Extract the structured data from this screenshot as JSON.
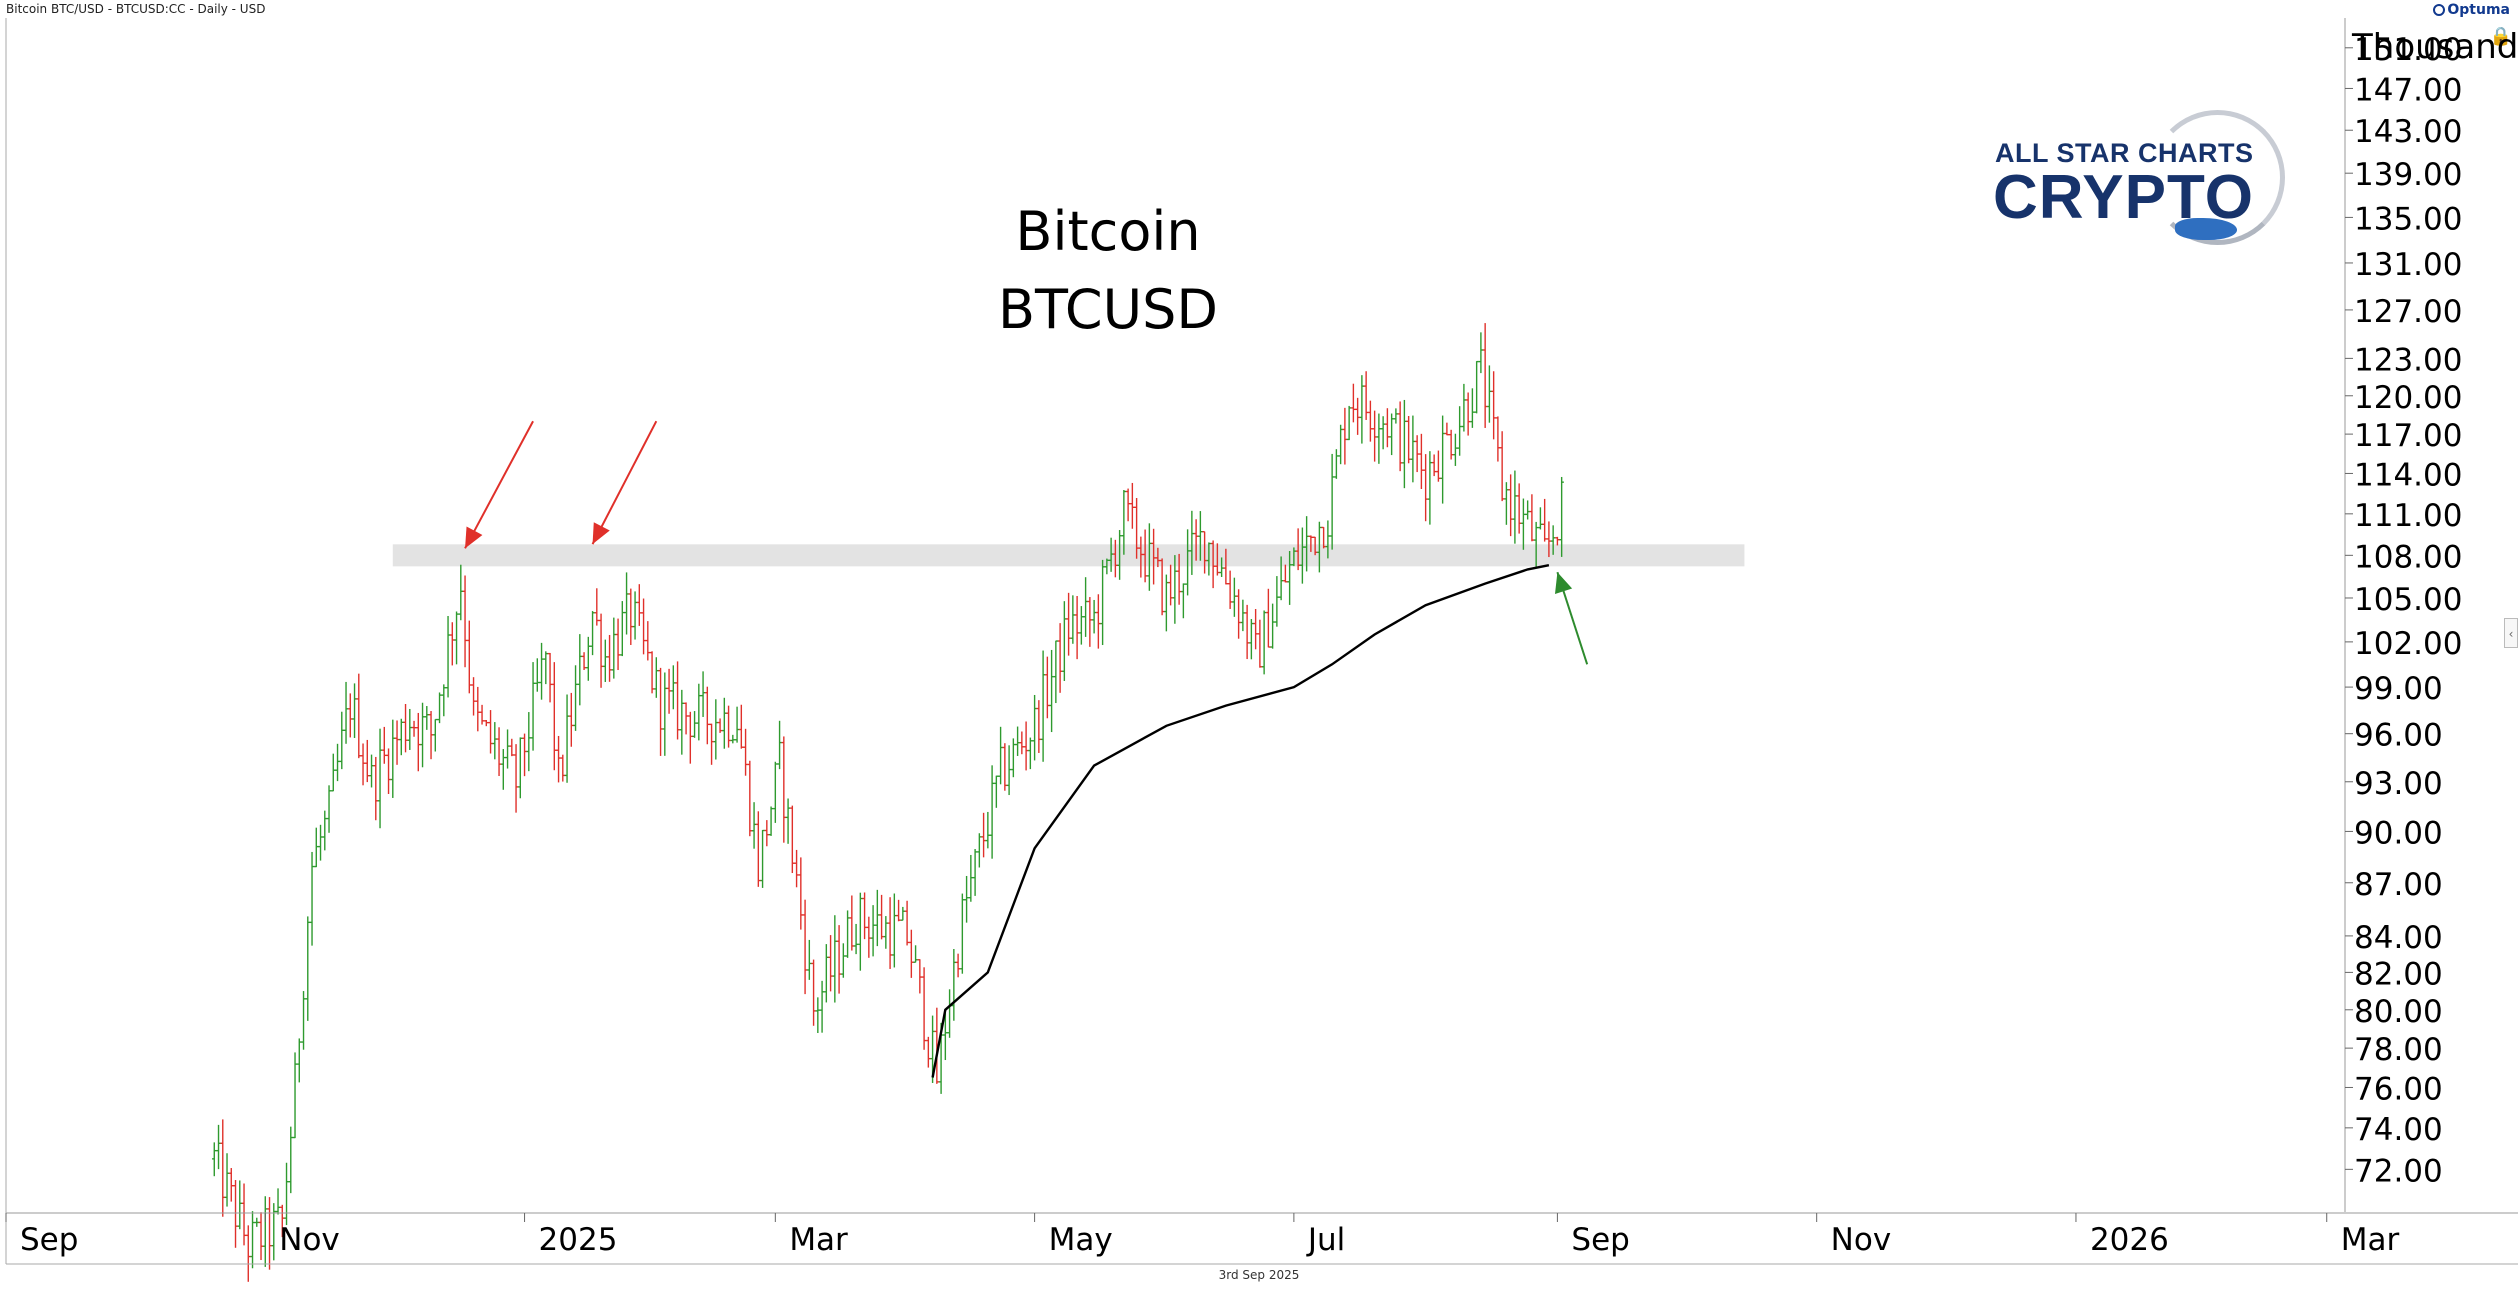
{
  "header": {
    "chart_description": "Bitcoin BTC/USD - BTCUSD:CC - Daily - USD",
    "brand": "Optuma"
  },
  "logo": {
    "line1": "ALL STAR CHARTS",
    "line2": "CRYPTO"
  },
  "footer": {
    "date": "3rd Sep 2025"
  },
  "chart_data": {
    "type": "candlestick",
    "title": "Bitcoin",
    "subtitle": "BTCUSD",
    "y_unit_label": "Thousand",
    "y_scale": "log",
    "ylim": [
      70,
      154
    ],
    "y_ticks": [
      "151.00",
      "147.00",
      "143.00",
      "139.00",
      "135.00",
      "131.00",
      "127.00",
      "123.00",
      "120.00",
      "117.00",
      "114.00",
      "111.00",
      "108.00",
      "105.00",
      "102.00",
      "99.00",
      "96.00",
      "93.00",
      "90.00",
      "87.00",
      "84.00",
      "82.00",
      "80.00",
      "78.00",
      "76.00",
      "74.00",
      "72.00"
    ],
    "x_ticks": [
      "Sep",
      "Nov",
      "2025",
      "Mar",
      "May",
      "Jul",
      "Sep",
      "Nov",
      "2026",
      "Mar"
    ],
    "xlim": [
      "2024-09-01",
      "2026-04-15"
    ],
    "colors": {
      "up": "#2e9a2e",
      "down": "#e0302a",
      "average_line": "#000000",
      "resistance_band": "#d9d9d9",
      "red_arrow": "#e0302a",
      "green_arrow": "#2e8b2e"
    },
    "price_path": [
      [
        "2024-10-20",
        72.5
      ],
      [
        "2024-10-28",
        68.5
      ],
      [
        "2024-11-05",
        69.5
      ],
      [
        "2024-11-08",
        76.0
      ],
      [
        "2024-11-12",
        88.0
      ],
      [
        "2024-11-16",
        91.0
      ],
      [
        "2024-11-21",
        98.0
      ],
      [
        "2024-11-26",
        93.0
      ],
      [
        "2024-12-05",
        97.0
      ],
      [
        "2024-12-10",
        96.0
      ],
      [
        "2024-12-17",
        106.0
      ],
      [
        "2024-12-20",
        97.0
      ],
      [
        "2024-12-25",
        95.0
      ],
      [
        "2024-12-30",
        93.0
      ],
      [
        "2025-01-06",
        101.0
      ],
      [
        "2025-01-09",
        93.0
      ],
      [
        "2025-01-17",
        104.0
      ],
      [
        "2025-01-20",
        101.0
      ],
      [
        "2025-01-26",
        104.0
      ],
      [
        "2025-02-02",
        98.0
      ],
      [
        "2025-02-10",
        97.0
      ],
      [
        "2025-02-20",
        97.0
      ],
      [
        "2025-02-25",
        88.0
      ],
      [
        "2025-03-02",
        94.0
      ],
      [
        "2025-03-10",
        80.0
      ],
      [
        "2025-03-20",
        85.0
      ],
      [
        "2025-04-01",
        84.0
      ],
      [
        "2025-04-08",
        76.5
      ],
      [
        "2025-04-14",
        85.0
      ],
      [
        "2025-04-23",
        93.5
      ],
      [
        "2025-05-01",
        96.5
      ],
      [
        "2025-05-09",
        103.0
      ],
      [
        "2025-05-15",
        103.5
      ],
      [
        "2025-05-22",
        111.0
      ],
      [
        "2025-06-01",
        105.0
      ],
      [
        "2025-06-10",
        109.5
      ],
      [
        "2025-06-18",
        104.5
      ],
      [
        "2025-06-22",
        101.0
      ],
      [
        "2025-06-30",
        107.0
      ],
      [
        "2025-07-09",
        111.0
      ],
      [
        "2025-07-14",
        120.0
      ],
      [
        "2025-07-23",
        118.0
      ],
      [
        "2025-08-01",
        114.0
      ],
      [
        "2025-08-08",
        117.5
      ],
      [
        "2025-08-14",
        122.0
      ],
      [
        "2025-08-19",
        113.0
      ],
      [
        "2025-08-25",
        110.0
      ],
      [
        "2025-08-29",
        108.0
      ],
      [
        "2025-09-02",
        111.5
      ]
    ],
    "average_line": [
      [
        "2025-04-07",
        76.5
      ],
      [
        "2025-04-10",
        80.0
      ],
      [
        "2025-04-20",
        82.0
      ],
      [
        "2025-05-01",
        89.0
      ],
      [
        "2025-05-15",
        94.0
      ],
      [
        "2025-06-01",
        96.5
      ],
      [
        "2025-06-15",
        97.8
      ],
      [
        "2025-07-01",
        99.0
      ],
      [
        "2025-07-10",
        100.5
      ],
      [
        "2025-07-20",
        102.5
      ],
      [
        "2025-08-01",
        104.5
      ],
      [
        "2025-08-15",
        106.0
      ],
      [
        "2025-08-25",
        107.0
      ],
      [
        "2025-08-30",
        107.3
      ]
    ],
    "resistance_band": {
      "x_start": "2024-12-01",
      "x_end": "2025-10-15",
      "y_low": 107.5,
      "y_high": 108.5
    },
    "annotations": [
      {
        "type": "arrow",
        "color": "red",
        "from": [
          "2025-01-03",
          118.0
        ],
        "to": [
          "2024-12-18",
          108.5
        ]
      },
      {
        "type": "arrow",
        "color": "red",
        "from": [
          "2025-02-01",
          118.0
        ],
        "to": [
          "2025-01-17",
          108.8
        ]
      },
      {
        "type": "arrow",
        "color": "green",
        "from": [
          "2025-09-08",
          100.5
        ],
        "to": [
          "2025-09-01",
          106.8
        ]
      }
    ]
  }
}
